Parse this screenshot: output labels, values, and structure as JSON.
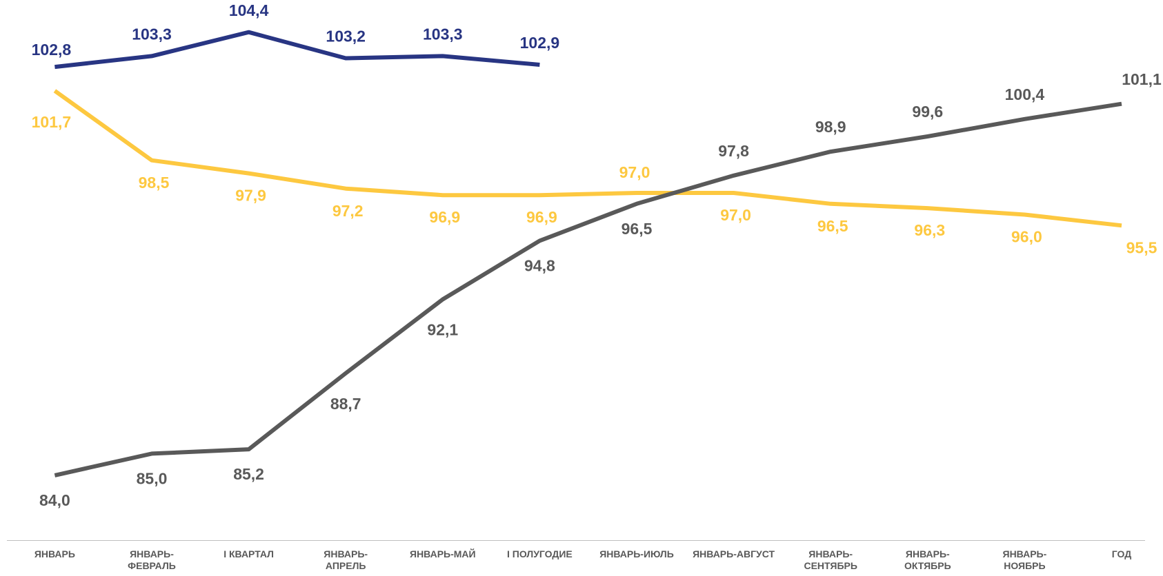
{
  "chart_data": {
    "type": "line",
    "categories": [
      "ЯНВАРЬ",
      "ЯНВАРЬ-ФЕВРАЛЬ",
      "I КВАРТАЛ",
      "ЯНВАРЬ-АПРЕЛЬ",
      "ЯНВАРЬ-МАЙ",
      "I ПОЛУГОДИЕ",
      "ЯНВАРЬ-ИЮЛЬ",
      "ЯНВАРЬ-АВГУСТ",
      "ЯНВАРЬ-СЕНТЯБРЬ",
      "ЯНВАРЬ-ОКТЯБРЬ",
      "ЯНВАРЬ-НОЯБРЬ",
      "ГОД"
    ],
    "ylim": [
      81,
      105.5
    ],
    "series": [
      {
        "color": "#283583",
        "values": [
          102.8,
          103.3,
          104.4,
          103.2,
          103.3,
          102.9,
          null,
          null,
          null,
          null,
          null,
          null
        ],
        "value_labels": [
          "102,8",
          "103,3",
          "104,4",
          "103,2",
          "103,3",
          "102,9",
          null,
          null,
          null,
          null,
          null,
          null
        ]
      },
      {
        "color": "#fdc840",
        "values": [
          101.7,
          98.5,
          97.9,
          97.2,
          96.9,
          96.9,
          97.0,
          97.0,
          96.5,
          96.3,
          96.0,
          95.5
        ],
        "value_labels": [
          "101,7",
          "98,5",
          "97,9",
          "97,2",
          "96,9",
          "96,9",
          "97,0",
          "97,0",
          "96,5",
          "96,3",
          "96,0",
          "95,5"
        ]
      },
      {
        "color": "#595959",
        "values": [
          84.0,
          85.0,
          85.2,
          88.7,
          92.1,
          94.8,
          96.5,
          97.8,
          98.9,
          99.6,
          100.4,
          101.1
        ],
        "value_labels": [
          "84,0",
          "85,0",
          "85,2",
          "88,7",
          "92,1",
          "94,8",
          "96,5",
          "97,8",
          "98,9",
          "99,6",
          "100,4",
          "101,1"
        ]
      }
    ]
  }
}
